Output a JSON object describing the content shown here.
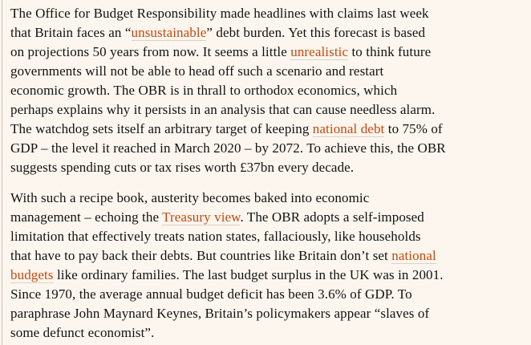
{
  "theme": {
    "background": "#fcf6ef",
    "text_color": "#121212",
    "link_color": "#c7480c",
    "link_underline_color": "#dcd2c6",
    "left_rule_color": "#c6c1ba"
  },
  "article": {
    "paragraphs": [
      {
        "lines": [
          [
            {
              "t": "The Office for Budget Responsibility made headlines with claims last week"
            }
          ],
          [
            {
              "t": "that Britain faces an “"
            },
            {
              "t": "unsustainable",
              "link": true
            },
            {
              "t": "” debt burden. Yet this forecast is based"
            }
          ],
          [
            {
              "t": "on projections 50 years from now. It seems a little "
            },
            {
              "t": "unrealistic",
              "link": true
            },
            {
              "t": " to think future"
            }
          ],
          [
            {
              "t": "governments will not be able to head off such a scenario and restart"
            }
          ],
          [
            {
              "t": "economic growth. The OBR is in thrall to orthodox economics, which"
            }
          ],
          [
            {
              "t": "perhaps explains why it persists in an analysis that can cause needless alarm."
            }
          ],
          [
            {
              "t": "The watchdog sets itself an arbitrary target of keeping "
            },
            {
              "t": "national debt",
              "link": true
            },
            {
              "t": " to 75% of"
            }
          ],
          [
            {
              "t": "GDP – the level it reached in March 2020 – by 2072. To achieve this, the OBR"
            }
          ],
          [
            {
              "t": "suggests spending cuts or tax rises worth £37bn every decade."
            }
          ]
        ]
      },
      {
        "lines": [
          [
            {
              "t": "With such a recipe book, austerity becomes baked into economic"
            }
          ],
          [
            {
              "t": "management – echoing the "
            },
            {
              "t": "Treasury view",
              "link": true
            },
            {
              "t": ". The OBR adopts a self-imposed"
            }
          ],
          [
            {
              "t": "limitation that effectively treats nation states, fallaciously, like households"
            }
          ],
          [
            {
              "t": "that have to pay back their debts. But countries like Britain don’t set "
            },
            {
              "t": "national",
              "link": true
            }
          ],
          [
            {
              "t": "budgets",
              "link": true
            },
            {
              "t": " like ordinary families. The last budget surplus in the UK was in 2001."
            }
          ],
          [
            {
              "t": "Since 1970, the average annual budget deficit has been 3.6% of GDP. To"
            }
          ],
          [
            {
              "t": "paraphrase John Maynard Keynes, Britain’s policymakers appear “slaves of"
            }
          ],
          [
            {
              "t": "some defunct economist”."
            }
          ]
        ]
      }
    ]
  }
}
